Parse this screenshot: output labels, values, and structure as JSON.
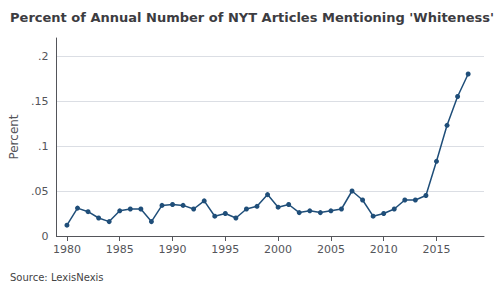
{
  "chart_data": {
    "type": "line",
    "title": "Percent of Annual Number of NYT Articles Mentioning 'Whiteness'",
    "ylabel": "Percent",
    "annotation": "Source: LexisNexis",
    "x": [
      1980,
      1981,
      1982,
      1983,
      1984,
      1985,
      1986,
      1987,
      1988,
      1989,
      1990,
      1991,
      1992,
      1993,
      1994,
      1995,
      1996,
      1997,
      1998,
      1999,
      2000,
      2001,
      2002,
      2003,
      2004,
      2005,
      2006,
      2007,
      2008,
      2009,
      2010,
      2011,
      2012,
      2013,
      2014,
      2015,
      2016,
      2017,
      2018
    ],
    "values": [
      0.012,
      0.031,
      0.027,
      0.02,
      0.016,
      0.028,
      0.03,
      0.03,
      0.016,
      0.034,
      0.035,
      0.034,
      0.03,
      0.039,
      0.022,
      0.025,
      0.02,
      0.03,
      0.033,
      0.046,
      0.032,
      0.035,
      0.026,
      0.028,
      0.026,
      0.028,
      0.03,
      0.05,
      0.04,
      0.022,
      0.025,
      0.03,
      0.04,
      0.04,
      0.045,
      0.083,
      0.123,
      0.155,
      0.18
    ],
    "color": "#1f4e79",
    "marker": "circle",
    "xlim": [
      1979,
      2019.5
    ],
    "xticks": [
      1980,
      1985,
      1990,
      1995,
      2000,
      2005,
      2010,
      2015
    ],
    "ylim": [
      0,
      0.22
    ],
    "yticks": [
      0,
      {
        "value": 0.05,
        "label": ".05"
      },
      {
        "value": 0.1,
        "label": ".1"
      },
      {
        "value": 0.15,
        "label": ".15"
      },
      {
        "value": 0.2,
        "label": ".2"
      }
    ],
    "grid": true
  }
}
